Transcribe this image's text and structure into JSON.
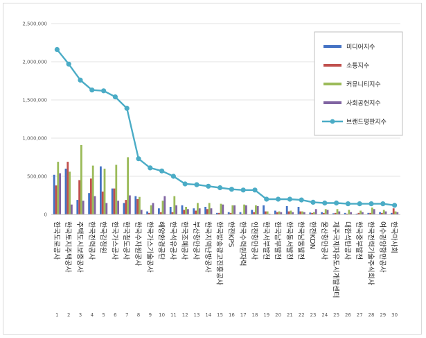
{
  "chart_data": {
    "type": "bar",
    "title": "",
    "xlabel": "",
    "ylabel": "",
    "ylim": [
      0,
      2500000
    ],
    "yticks": [
      "2,500,000",
      "2,000,000",
      "1,500,000",
      "1,000,000",
      "500,000",
      "0"
    ],
    "grid": "horizontal",
    "legend_position": "top-right",
    "numbers": [
      "1",
      "2",
      "3",
      "4",
      "5",
      "6",
      "7",
      "8",
      "9",
      "10",
      "11",
      "12",
      "13",
      "14",
      "15",
      "16",
      "17",
      "18",
      "19",
      "20",
      "21",
      "22",
      "23",
      "24",
      "25",
      "26",
      "27",
      "28",
      "29",
      "30"
    ],
    "categories": [
      "한국도로공사",
      "한국토지주택공사",
      "주택도시보증공사",
      "한국전력공사",
      "한국감정원",
      "한국가스공사",
      "한국철도공사",
      "한국수자원공사",
      "한국가스기술공사",
      "해양환경공단",
      "한국석유공사",
      "한국조폐공사",
      "부산항만공사",
      "한국지역난방공사",
      "한국방송광고진흥공사",
      "한전KPS",
      "한국수력원자력",
      "인천항만공사",
      "한국서부발전",
      "한국남부발전",
      "한국동서발전",
      "한국남동발전",
      "한전KDN",
      "울산항만공사",
      "제주국제자유도시개발센터",
      "대한석탄공사",
      "한국중부발전",
      "한국전력기술주식회사",
      "여수광양항만공사",
      "한국마사회"
    ],
    "series": [
      {
        "name": "미디어지수",
        "type": "bar",
        "color": "#4472c4",
        "values": [
          520000,
          600000,
          190000,
          280000,
          630000,
          340000,
          150000,
          240000,
          40000,
          80000,
          100000,
          120000,
          80000,
          100000,
          20000,
          30000,
          30000,
          60000,
          120000,
          50000,
          110000,
          100000,
          25000,
          30000,
          15000,
          20000,
          10000,
          20000,
          30000,
          20000
        ]
      },
      {
        "name": "소통지수",
        "type": "bar",
        "color": "#c0504d",
        "values": [
          380000,
          690000,
          450000,
          470000,
          300000,
          340000,
          190000,
          200000,
          20000,
          30000,
          30000,
          60000,
          50000,
          70000,
          20000,
          20000,
          10000,
          30000,
          40000,
          30000,
          40000,
          40000,
          20000,
          20000,
          20000,
          10000,
          20000,
          20000,
          20000,
          80000
        ]
      },
      {
        "name": "커뮤니티지수",
        "type": "bar",
        "color": "#9bbb59",
        "values": [
          690000,
          560000,
          910000,
          640000,
          600000,
          650000,
          750000,
          230000,
          120000,
          180000,
          240000,
          100000,
          150000,
          150000,
          140000,
          120000,
          130000,
          120000,
          40000,
          40000,
          50000,
          40000,
          30000,
          70000,
          70000,
          60000,
          50000,
          90000,
          60000,
          40000
        ]
      },
      {
        "name": "사회공헌지수",
        "type": "bar",
        "color": "#8064a2",
        "values": [
          540000,
          130000,
          180000,
          240000,
          150000,
          180000,
          250000,
          60000,
          150000,
          240000,
          120000,
          70000,
          80000,
          80000,
          130000,
          120000,
          120000,
          110000,
          10000,
          30000,
          30000,
          30000,
          70000,
          60000,
          40000,
          30000,
          30000,
          70000,
          40000,
          30000
        ]
      },
      {
        "name": "브랜드평판지수",
        "type": "line",
        "color": "#4bacc6",
        "values": [
          2160000,
          1970000,
          1760000,
          1630000,
          1620000,
          1540000,
          1390000,
          730000,
          610000,
          570000,
          500000,
          400000,
          390000,
          370000,
          350000,
          330000,
          320000,
          320000,
          200000,
          200000,
          200000,
          190000,
          160000,
          150000,
          150000,
          140000,
          140000,
          140000,
          140000,
          120000
        ]
      }
    ]
  }
}
